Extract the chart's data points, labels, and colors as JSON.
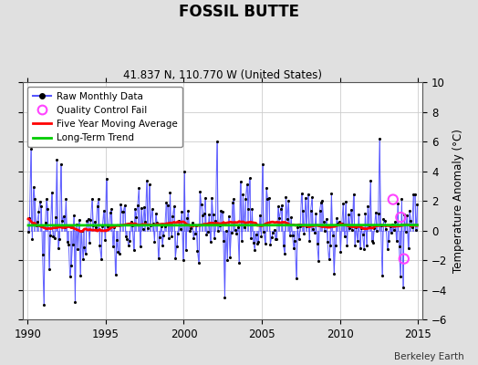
{
  "title": "FOSSIL BUTTE",
  "subtitle": "41.837 N, 110.770 W (United States)",
  "ylabel": "Temperature Anomaly (°C)",
  "credit": "Berkeley Earth",
  "xlim": [
    1989.7,
    2015.3
  ],
  "ylim": [
    -6,
    10
  ],
  "yticks": [
    -6,
    -4,
    -2,
    0,
    2,
    4,
    6,
    8,
    10
  ],
  "xticks": [
    1990,
    1995,
    2000,
    2005,
    2010,
    2015
  ],
  "fig_bg_color": "#e0e0e0",
  "plot_bg_color": "#ffffff",
  "raw_color": "#5555ff",
  "dot_color": "#000000",
  "ma_color": "#ff0000",
  "trend_color": "#00cc00",
  "qc_color": "#ff44ff",
  "grid_color": "#cccccc",
  "seed": 12345,
  "qc_points_x": [
    2013.4,
    2013.9,
    2014.1
  ],
  "qc_points_y": [
    2.1,
    0.9,
    -1.9
  ]
}
